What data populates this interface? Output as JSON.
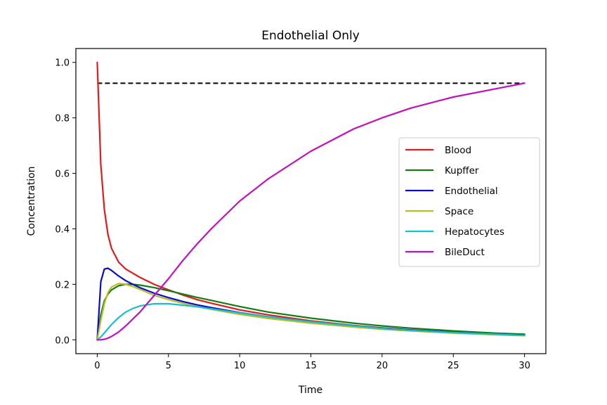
{
  "chart_data": {
    "type": "line",
    "title": "Endothelial Only",
    "xlabel": "Time",
    "ylabel": "Concentration",
    "xlim": [
      -1.5,
      31.5
    ],
    "ylim": [
      -0.05,
      1.05
    ],
    "x_ticks": [
      0,
      5,
      10,
      15,
      20,
      25,
      30
    ],
    "x_tick_labels": [
      "0",
      "5",
      "10",
      "15",
      "20",
      "25",
      "30"
    ],
    "y_ticks": [
      0.0,
      0.2,
      0.4,
      0.6,
      0.8,
      1.0
    ],
    "y_tick_labels": [
      "0.0",
      "0.2",
      "0.4",
      "0.6",
      "0.8",
      "1.0"
    ],
    "grid": false,
    "legend_position": "center-right",
    "reference_line": {
      "y": 0.925,
      "x": [
        0,
        30
      ],
      "color": "#000000",
      "style": "dashed"
    },
    "x": [
      0,
      0.25,
      0.5,
      0.75,
      1,
      1.5,
      2,
      2.5,
      3,
      4,
      5,
      6,
      7,
      8,
      10,
      12,
      15,
      18,
      20,
      22,
      25,
      28,
      30
    ],
    "series": [
      {
        "name": "Blood",
        "color": "#e31a1c",
        "values": [
          1.0,
          0.63,
          0.47,
          0.38,
          0.33,
          0.28,
          0.255,
          0.24,
          0.225,
          0.2,
          0.18,
          0.162,
          0.145,
          0.132,
          0.108,
          0.09,
          0.068,
          0.052,
          0.043,
          0.036,
          0.027,
          0.021,
          0.018
        ]
      },
      {
        "name": "Kupffer",
        "color": "#107e10",
        "values": [
          0.0,
          0.09,
          0.14,
          0.165,
          0.18,
          0.195,
          0.2,
          0.2,
          0.197,
          0.188,
          0.177,
          0.165,
          0.153,
          0.142,
          0.12,
          0.1,
          0.078,
          0.06,
          0.05,
          0.042,
          0.032,
          0.024,
          0.02
        ]
      },
      {
        "name": "Endothelial",
        "color": "#0a0acd",
        "values": [
          0.0,
          0.21,
          0.255,
          0.258,
          0.25,
          0.23,
          0.213,
          0.2,
          0.188,
          0.168,
          0.152,
          0.138,
          0.126,
          0.116,
          0.098,
          0.083,
          0.065,
          0.05,
          0.042,
          0.035,
          0.027,
          0.02,
          0.017
        ]
      },
      {
        "name": "Space",
        "color": "#bcbd22",
        "values": [
          0.0,
          0.07,
          0.13,
          0.17,
          0.19,
          0.203,
          0.2,
          0.192,
          0.182,
          0.16,
          0.145,
          0.132,
          0.12,
          0.11,
          0.092,
          0.077,
          0.06,
          0.046,
          0.038,
          0.032,
          0.024,
          0.018,
          0.015
        ]
      },
      {
        "name": "Hepatocytes",
        "color": "#17becf",
        "values": [
          0.0,
          0.01,
          0.025,
          0.04,
          0.055,
          0.08,
          0.1,
          0.113,
          0.122,
          0.13,
          0.13,
          0.125,
          0.119,
          0.112,
          0.097,
          0.083,
          0.065,
          0.05,
          0.041,
          0.034,
          0.026,
          0.02,
          0.016
        ]
      },
      {
        "name": "BileDuct",
        "color": "#c010c0",
        "values": [
          0.0,
          0.0,
          0.002,
          0.006,
          0.012,
          0.028,
          0.05,
          0.075,
          0.1,
          0.16,
          0.22,
          0.285,
          0.345,
          0.4,
          0.5,
          0.58,
          0.68,
          0.76,
          0.8,
          0.835,
          0.875,
          0.905,
          0.925
        ]
      }
    ]
  }
}
